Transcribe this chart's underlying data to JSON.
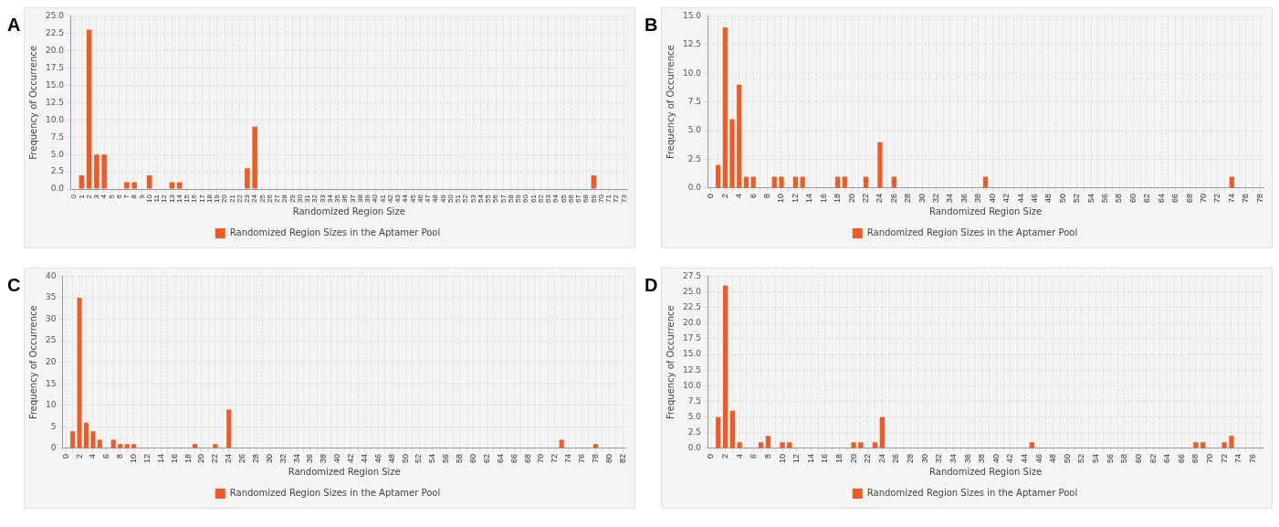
{
  "chart_data": [
    {
      "type": "bar",
      "title": "A",
      "xlabel": "Randomized Region Size",
      "ylabel": "Frequency of Occurrence",
      "grid": true,
      "legend": "bottom",
      "categories": [
        "0",
        "1",
        "2",
        "3",
        "4",
        "5",
        "6",
        "7",
        "8",
        "9",
        "10",
        "11",
        "12",
        "13",
        "14",
        "15",
        "16",
        "17",
        "18",
        "19",
        "20",
        "21",
        "22",
        "23",
        "24",
        "25",
        "26",
        "27",
        "28",
        "29",
        "30",
        "31",
        "32",
        "33",
        "34",
        "35",
        "36",
        "37",
        "38",
        "39",
        "40",
        "41",
        "42",
        "43",
        "44",
        "45",
        "46",
        "47",
        "48",
        "49",
        "50",
        "51",
        "52",
        "53",
        "54",
        "55",
        "56",
        "57",
        "58",
        "59",
        "60",
        "61",
        "62",
        "63",
        "64",
        "65",
        "66",
        "67",
        "68",
        "69",
        "70",
        "71",
        "72",
        "73"
      ],
      "ylim": [
        0,
        25
      ],
      "yticks": [
        {
          "value": 0,
          "label": "0.0"
        },
        {
          "value": 2.5,
          "label": "2.5"
        },
        {
          "value": 5,
          "label": "5.0"
        },
        {
          "value": 7.5,
          "label": "7.5"
        },
        {
          "value": 10,
          "label": "10.0"
        },
        {
          "value": 12.5,
          "label": "12.5"
        },
        {
          "value": 15,
          "label": "15.0"
        },
        {
          "value": 17.5,
          "label": "17.5"
        },
        {
          "value": 20,
          "label": "20.0"
        },
        {
          "value": 22.5,
          "label": "22.5"
        },
        {
          "value": 25,
          "label": "25.0"
        }
      ],
      "series": [
        {
          "name": "Randomized Region Sizes in the Aptamer Pool",
          "color": "#f05a24",
          "values": [
            0,
            2,
            23,
            5,
            5,
            0,
            0,
            1,
            1,
            0,
            2,
            0,
            0,
            1,
            1,
            0,
            0,
            0,
            0,
            0,
            0,
            0,
            0,
            3,
            9,
            0,
            0,
            0,
            0,
            0,
            0,
            0,
            0,
            0,
            0,
            0,
            0,
            0,
            0,
            0,
            0,
            0,
            0,
            0,
            0,
            0,
            0,
            0,
            0,
            0,
            0,
            0,
            0,
            0,
            0,
            0,
            0,
            0,
            0,
            0,
            0,
            0,
            0,
            0,
            0,
            0,
            0,
            0,
            0,
            2,
            0,
            0,
            0,
            0
          ]
        }
      ]
    },
    {
      "type": "bar",
      "title": "B",
      "xlabel": "Randomized Region Size",
      "ylabel": "Frequency of Occurrence",
      "grid": true,
      "legend": "bottom",
      "categories": [
        "0",
        null,
        "2",
        null,
        "4",
        null,
        "6",
        null,
        "8",
        null,
        "10",
        null,
        "12",
        null,
        "14",
        null,
        "16",
        null,
        "18",
        null,
        "20",
        null,
        "22",
        null,
        "24",
        null,
        "26",
        null,
        "28",
        null,
        "30",
        null,
        "32",
        null,
        "34",
        null,
        "36",
        null,
        "38",
        null,
        "40",
        null,
        "42",
        null,
        "44",
        null,
        "46",
        null,
        "48",
        null,
        "50",
        null,
        "52",
        null,
        "54",
        null,
        "56",
        null,
        "58",
        null,
        "60",
        null,
        "62",
        null,
        "64",
        null,
        "66",
        null,
        "68",
        null,
        "70",
        null,
        "72",
        null,
        "74",
        null,
        "76",
        null,
        "78"
      ],
      "ylim": [
        0,
        15
      ],
      "yticks": [
        {
          "value": 0,
          "label": "0.0"
        },
        {
          "value": 2.5,
          "label": "2.5"
        },
        {
          "value": 5,
          "label": "5.0"
        },
        {
          "value": 7.5,
          "label": "7.5"
        },
        {
          "value": 10,
          "label": "10.0"
        },
        {
          "value": 12.5,
          "label": "12.5"
        },
        {
          "value": 15,
          "label": "15.0"
        }
      ],
      "series": [
        {
          "name": "Randomized Region Sizes in the Aptamer Pool",
          "color": "#f05a24",
          "values": [
            0,
            2,
            14,
            6,
            9,
            1,
            1,
            0,
            0,
            1,
            1,
            0,
            1,
            1,
            0,
            0,
            0,
            0,
            1,
            1,
            0,
            0,
            1,
            0,
            4,
            0,
            1,
            0,
            0,
            0,
            0,
            0,
            0,
            0,
            0,
            0,
            0,
            0,
            0,
            1,
            0,
            0,
            0,
            0,
            0,
            0,
            0,
            0,
            0,
            0,
            0,
            0,
            0,
            0,
            0,
            0,
            0,
            0,
            0,
            0,
            0,
            0,
            0,
            0,
            0,
            0,
            0,
            0,
            0,
            0,
            0,
            0,
            0,
            0,
            1,
            0,
            0,
            0,
            0
          ]
        }
      ]
    },
    {
      "type": "bar",
      "title": "C",
      "xlabel": "Randomized Region Size",
      "ylabel": "Frequency of Occurrence",
      "grid": true,
      "legend": "bottom",
      "categories": [
        "0",
        null,
        "2",
        null,
        "4",
        null,
        "6",
        null,
        "8",
        null,
        "10",
        null,
        "12",
        null,
        "14",
        null,
        "16",
        null,
        "18",
        null,
        "20",
        null,
        "22",
        null,
        "24",
        null,
        "26",
        null,
        "28",
        null,
        "30",
        null,
        "32",
        null,
        "34",
        null,
        "36",
        null,
        "38",
        null,
        "40",
        null,
        "42",
        null,
        "44",
        null,
        "46",
        null,
        "48",
        null,
        "50",
        null,
        "52",
        null,
        "54",
        null,
        "56",
        null,
        "58",
        null,
        "60",
        null,
        "62",
        null,
        "64",
        null,
        "66",
        null,
        "68",
        null,
        "70",
        null,
        "72",
        null,
        "74",
        null,
        "76",
        null,
        "78",
        null,
        "80",
        null,
        "82"
      ],
      "ylim": [
        0,
        40
      ],
      "yticks": [
        0,
        5,
        10,
        15,
        20,
        25,
        30,
        35,
        40
      ],
      "series": [
        {
          "name": "Randomized Region Sizes in the Aptamer Pool",
          "color": "#f05a24",
          "values": [
            0,
            4,
            35,
            6,
            4,
            2,
            0,
            2,
            1,
            1,
            1,
            0,
            0,
            0,
            0,
            0,
            0,
            0,
            0,
            1,
            0,
            0,
            1,
            0,
            9,
            0,
            0,
            0,
            0,
            0,
            0,
            0,
            0,
            0,
            0,
            0,
            0,
            0,
            0,
            0,
            0,
            0,
            0,
            0,
            0,
            0,
            0,
            0,
            0,
            0,
            0,
            0,
            0,
            0,
            0,
            0,
            0,
            0,
            0,
            0,
            0,
            0,
            0,
            0,
            0,
            0,
            0,
            0,
            0,
            0,
            0,
            0,
            0,
            2,
            0,
            0,
            0,
            0,
            1,
            0,
            0,
            0,
            0
          ]
        }
      ]
    },
    {
      "type": "bar",
      "title": "D",
      "xlabel": "Randomized Region Size",
      "ylabel": "Frequency of Occurrence",
      "grid": true,
      "legend": "bottom",
      "categories": [
        "0",
        null,
        "2",
        null,
        "4",
        null,
        "6",
        null,
        "8",
        null,
        "10",
        null,
        "12",
        null,
        "14",
        null,
        "16",
        null,
        "18",
        null,
        "20",
        null,
        "22",
        null,
        "24",
        null,
        "26",
        null,
        "28",
        null,
        "30",
        null,
        "32",
        null,
        "34",
        null,
        "36",
        null,
        "38",
        null,
        "40",
        null,
        "42",
        null,
        "44",
        null,
        "46",
        null,
        "48",
        null,
        "50",
        null,
        "52",
        null,
        "54",
        null,
        "56",
        null,
        "58",
        null,
        "60",
        null,
        "62",
        null,
        "64",
        null,
        "66",
        null,
        "68",
        null,
        "70",
        null,
        "72",
        null,
        "74",
        null,
        "76",
        null
      ],
      "ylim": [
        0,
        27.5
      ],
      "yticks": [
        {
          "value": 0,
          "label": "0.0"
        },
        {
          "value": 2.5,
          "label": "2.5"
        },
        {
          "value": 5,
          "label": "5.0"
        },
        {
          "value": 7.5,
          "label": "7.5"
        },
        {
          "value": 10,
          "label": "10.0"
        },
        {
          "value": 12.5,
          "label": "12.5"
        },
        {
          "value": 15,
          "label": "15.0"
        },
        {
          "value": 17.5,
          "label": "17.5"
        },
        {
          "value": 20,
          "label": "20.0"
        },
        {
          "value": 22.5,
          "label": "22.5"
        },
        {
          "value": 25,
          "label": "25.0"
        },
        {
          "value": 27.5,
          "label": "27.5"
        }
      ],
      "series": [
        {
          "name": "Randomized Region Sizes in the Aptamer Pool",
          "color": "#f05a24",
          "values": [
            0,
            5,
            26,
            6,
            1,
            0,
            0,
            1,
            2,
            0,
            1,
            1,
            0,
            0,
            0,
            0,
            0,
            0,
            0,
            0,
            1,
            1,
            0,
            1,
            5,
            0,
            0,
            0,
            0,
            0,
            0,
            0,
            0,
            0,
            0,
            0,
            0,
            0,
            0,
            0,
            0,
            0,
            0,
            0,
            0,
            1,
            0,
            0,
            0,
            0,
            0,
            0,
            0,
            0,
            0,
            0,
            0,
            0,
            0,
            0,
            0,
            0,
            0,
            0,
            0,
            0,
            0,
            0,
            1,
            1,
            0,
            0,
            1,
            2,
            0,
            0,
            0,
            0
          ]
        }
      ]
    }
  ]
}
